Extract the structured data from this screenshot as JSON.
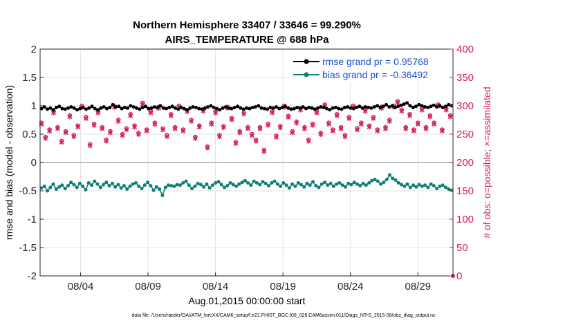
{
  "chart_data": {
    "type": "line",
    "title_line1": "Northern Hemisphere 33407 / 33646 = 99.290%",
    "title_line2": "AIRS_TEMPERATURE @ 688 hPa",
    "xlabel": "Aug.01,2015 00:00:00 start",
    "ylabel_left": "rmse and bias (model - observation)",
    "ylabel_right": "# of obs: o=possible; ×=assimilated",
    "xlim_days": [
      1.0,
      31.6
    ],
    "ylim_left": [
      -2,
      2
    ],
    "ylim_right": [
      0,
      400
    ],
    "left_ticks": [
      "-2",
      "-1.5",
      "-1",
      "-0.5",
      "0",
      "0.5",
      "1",
      "1.5",
      "2"
    ],
    "right_ticks": [
      "0",
      "50",
      "100",
      "150",
      "200",
      "250",
      "300",
      "350",
      "400"
    ],
    "x_ticks": [
      {
        "day": 4,
        "label": "08/04"
      },
      {
        "day": 9,
        "label": "08/09"
      },
      {
        "day": 14,
        "label": "08/14"
      },
      {
        "day": 19,
        "label": "08/19"
      },
      {
        "day": 24,
        "label": "08/24"
      },
      {
        "day": 29,
        "label": "08/29"
      }
    ],
    "legend_location": "top-right",
    "series": [
      {
        "name": "rmse grand pr = 0.95768",
        "color": "#000000",
        "values": [
          0.95,
          0.98,
          0.94,
          0.96,
          0.93,
          0.97,
          0.99,
          0.95,
          0.94,
          0.96,
          0.98,
          0.96,
          0.93,
          0.95,
          0.97,
          0.94,
          0.96,
          0.99,
          0.95,
          0.93,
          0.96,
          0.98,
          0.95,
          0.97,
          1.02,
          0.98,
          0.99,
          0.95,
          0.97,
          0.96,
          1.0,
          0.98,
          0.96,
          0.94,
          0.97,
          0.99,
          0.95,
          0.96,
          0.98,
          0.97,
          1.0,
          0.96,
          0.95,
          0.97,
          0.99,
          0.96,
          0.94,
          0.97,
          0.95,
          0.93,
          0.96,
          0.98,
          0.97,
          0.95,
          0.94,
          0.96,
          0.98,
          1.0,
          0.97,
          0.95,
          0.93,
          0.96,
          0.98,
          0.96,
          0.95,
          0.97,
          0.99,
          0.96,
          0.94,
          0.96,
          0.95,
          0.97,
          0.98,
          1.0,
          0.96,
          0.95,
          0.94,
          0.97,
          0.96,
          0.98,
          0.95,
          0.97,
          0.99,
          0.96,
          0.94,
          0.95,
          0.97,
          0.96,
          0.98,
          0.95,
          0.97,
          0.96,
          0.94,
          0.96,
          0.98,
          0.97,
          0.95,
          0.93,
          0.96,
          0.97,
          0.95,
          0.94,
          0.97,
          0.98,
          0.96,
          0.95,
          0.97,
          0.99,
          0.96,
          0.98,
          0.97,
          0.96,
          0.98,
          1.0,
          0.97,
          0.99,
          1.02,
          0.98,
          1.0,
          0.97,
          0.99,
          1.01,
          1.03,
          1.05,
          1.0,
          0.97,
          0.99,
          1.02,
          1.0,
          0.98,
          0.97,
          0.99,
          1.01,
          0.98,
          1.0,
          0.97,
          0.99,
          1.02,
          1.0
        ]
      },
      {
        "name": "bias grand pr = -0.36492",
        "color": "#0b8078",
        "values": [
          -0.45,
          -0.42,
          -0.5,
          -0.44,
          -0.38,
          -0.47,
          -0.43,
          -0.4,
          -0.46,
          -0.41,
          -0.35,
          -0.39,
          -0.44,
          -0.37,
          -0.42,
          -0.48,
          -0.36,
          -0.4,
          -0.33,
          -0.38,
          -0.44,
          -0.39,
          -0.35,
          -0.41,
          -0.37,
          -0.43,
          -0.39,
          -0.45,
          -0.41,
          -0.47,
          -0.42,
          -0.38,
          -0.36,
          -0.42,
          -0.46,
          -0.4,
          -0.35,
          -0.41,
          -0.49,
          -0.43,
          -0.47,
          -0.58,
          -0.44,
          -0.4,
          -0.41,
          -0.42,
          -0.39,
          -0.4,
          -0.36,
          -0.33,
          -0.4,
          -0.46,
          -0.42,
          -0.37,
          -0.39,
          -0.43,
          -0.38,
          -0.45,
          -0.4,
          -0.36,
          -0.34,
          -0.39,
          -0.44,
          -0.41,
          -0.36,
          -0.39,
          -0.42,
          -0.38,
          -0.35,
          -0.32,
          -0.36,
          -0.4,
          -0.33,
          -0.36,
          -0.39,
          -0.34,
          -0.37,
          -0.41,
          -0.36,
          -0.33,
          -0.38,
          -0.42,
          -0.36,
          -0.4,
          -0.45,
          -0.38,
          -0.42,
          -0.36,
          -0.39,
          -0.43,
          -0.37,
          -0.4,
          -0.34,
          -0.41,
          -0.44,
          -0.38,
          -0.35,
          -0.4,
          -0.37,
          -0.42,
          -0.38,
          -0.36,
          -0.4,
          -0.43,
          -0.37,
          -0.39,
          -0.35,
          -0.38,
          -0.41,
          -0.37,
          -0.4,
          -0.36,
          -0.32,
          -0.3,
          -0.33,
          -0.38,
          -0.35,
          -0.3,
          -0.22,
          -0.28,
          -0.31,
          -0.36,
          -0.39,
          -0.42,
          -0.38,
          -0.44,
          -0.4,
          -0.43,
          -0.39,
          -0.42,
          -0.4,
          -0.44,
          -0.38,
          -0.41,
          -0.46,
          -0.42,
          -0.4,
          -0.44,
          -0.47,
          -0.49
        ]
      },
      {
        "name": "obs possible",
        "color": "#d51c5b",
        "axis": "right",
        "days": [
          1.1,
          1.4,
          1.7,
          2.0,
          2.3,
          2.6,
          2.9,
          3.2,
          3.5,
          3.8,
          4.1,
          4.4,
          4.7,
          5.0,
          5.3,
          5.6,
          5.9,
          6.2,
          6.5,
          6.8,
          7.1,
          7.4,
          7.7,
          8.0,
          8.3,
          8.6,
          8.9,
          9.2,
          9.5,
          9.8,
          10.1,
          10.4,
          10.7,
          11.0,
          11.3,
          11.6,
          11.9,
          12.2,
          12.5,
          12.8,
          13.1,
          13.4,
          13.7,
          14.0,
          14.3,
          14.6,
          14.9,
          15.2,
          15.5,
          15.8,
          16.1,
          16.4,
          16.7,
          17.0,
          17.3,
          17.6,
          17.9,
          18.2,
          18.5,
          18.8,
          19.1,
          19.4,
          19.7,
          20.0,
          20.3,
          20.6,
          20.9,
          21.2,
          21.5,
          21.8,
          22.1,
          22.4,
          22.7,
          23.0,
          23.3,
          23.6,
          23.9,
          24.2,
          24.5,
          24.8,
          25.1,
          25.4,
          25.7,
          26.0,
          26.3,
          26.6,
          26.9,
          27.2,
          27.5,
          27.8,
          28.1,
          28.4,
          28.7,
          29.0,
          29.3,
          29.6,
          29.9,
          30.2,
          30.5,
          30.8,
          31.1,
          31.4
        ],
        "values": [
          270,
          245,
          258,
          290,
          262,
          238,
          255,
          283,
          248,
          265,
          300,
          280,
          232,
          268,
          290,
          262,
          240,
          255,
          300,
          275,
          250,
          260,
          285,
          265,
          252,
          305,
          258,
          290,
          270,
          298,
          260,
          248,
          285,
          262,
          300,
          258,
          292,
          275,
          245,
          265,
          293,
          228,
          270,
          290,
          248,
          264,
          298,
          278,
          236,
          255,
          288,
          262,
          250,
          240,
          262,
          222,
          268,
          290,
          247,
          264,
          300,
          282,
          255,
          272,
          295,
          262,
          240,
          268,
          290,
          252,
          302,
          270,
          258,
          285,
          262,
          248,
          280,
          300,
          260,
          270,
          293,
          265,
          280,
          258,
          298,
          262,
          275,
          300,
          308,
          293,
          262,
          285,
          258,
          270,
          295,
          262,
          283,
          270,
          302,
          258,
          295,
          283
        ]
      },
      {
        "name": "obs assimilated",
        "color": "#d51c5b",
        "axis": "right",
        "days": [
          1.1,
          1.4,
          1.7,
          2.0,
          2.3,
          2.6,
          2.9,
          3.2,
          3.5,
          3.8,
          4.1,
          4.4,
          4.7,
          5.0,
          5.3,
          5.6,
          5.9,
          6.2,
          6.5,
          6.8,
          7.1,
          7.4,
          7.7,
          8.0,
          8.3,
          8.6,
          8.9,
          9.2,
          9.5,
          9.8,
          10.1,
          10.4,
          10.7,
          11.0,
          11.3,
          11.6,
          11.9,
          12.2,
          12.5,
          12.8,
          13.1,
          13.4,
          13.7,
          14.0,
          14.3,
          14.6,
          14.9,
          15.2,
          15.5,
          15.8,
          16.1,
          16.4,
          16.7,
          17.0,
          17.3,
          17.6,
          17.9,
          18.2,
          18.5,
          18.8,
          19.1,
          19.4,
          19.7,
          20.0,
          20.3,
          20.6,
          20.9,
          21.2,
          21.5,
          21.8,
          22.1,
          22.4,
          22.7,
          23.0,
          23.3,
          23.6,
          23.9,
          24.2,
          24.5,
          24.8,
          25.1,
          25.4,
          25.7,
          26.0,
          26.3,
          26.6,
          26.9,
          27.2,
          27.5,
          27.8,
          28.1,
          28.4,
          28.7,
          29.0,
          29.3,
          29.6,
          29.9,
          30.2,
          30.5,
          30.8,
          31.1,
          31.4
        ],
        "values": [
          268,
          243,
          256,
          288,
          260,
          236,
          253,
          281,
          246,
          263,
          298,
          278,
          230,
          266,
          288,
          260,
          238,
          253,
          298,
          273,
          248,
          258,
          283,
          263,
          250,
          303,
          256,
          288,
          268,
          296,
          258,
          246,
          283,
          260,
          298,
          256,
          290,
          273,
          243,
          263,
          291,
          226,
          268,
          288,
          246,
          262,
          296,
          276,
          234,
          253,
          286,
          260,
          248,
          238,
          260,
          220,
          266,
          288,
          245,
          262,
          298,
          280,
          253,
          270,
          293,
          260,
          238,
          266,
          288,
          250,
          300,
          268,
          256,
          283,
          260,
          246,
          278,
          298,
          258,
          268,
          291,
          263,
          278,
          256,
          296,
          260,
          273,
          298,
          306,
          291,
          260,
          283,
          256,
          268,
          293,
          260,
          281,
          268,
          300,
          256,
          293,
          281
        ]
      }
    ]
  },
  "footnote": "data file: /Users/raeder/DAI/ATM_forcXX/CAM6_setup/f.e21.FHIST_BGC.f09_025.CAM6assim.011/Diags_NTrS_2015-08/obs_diag_output.nc"
}
